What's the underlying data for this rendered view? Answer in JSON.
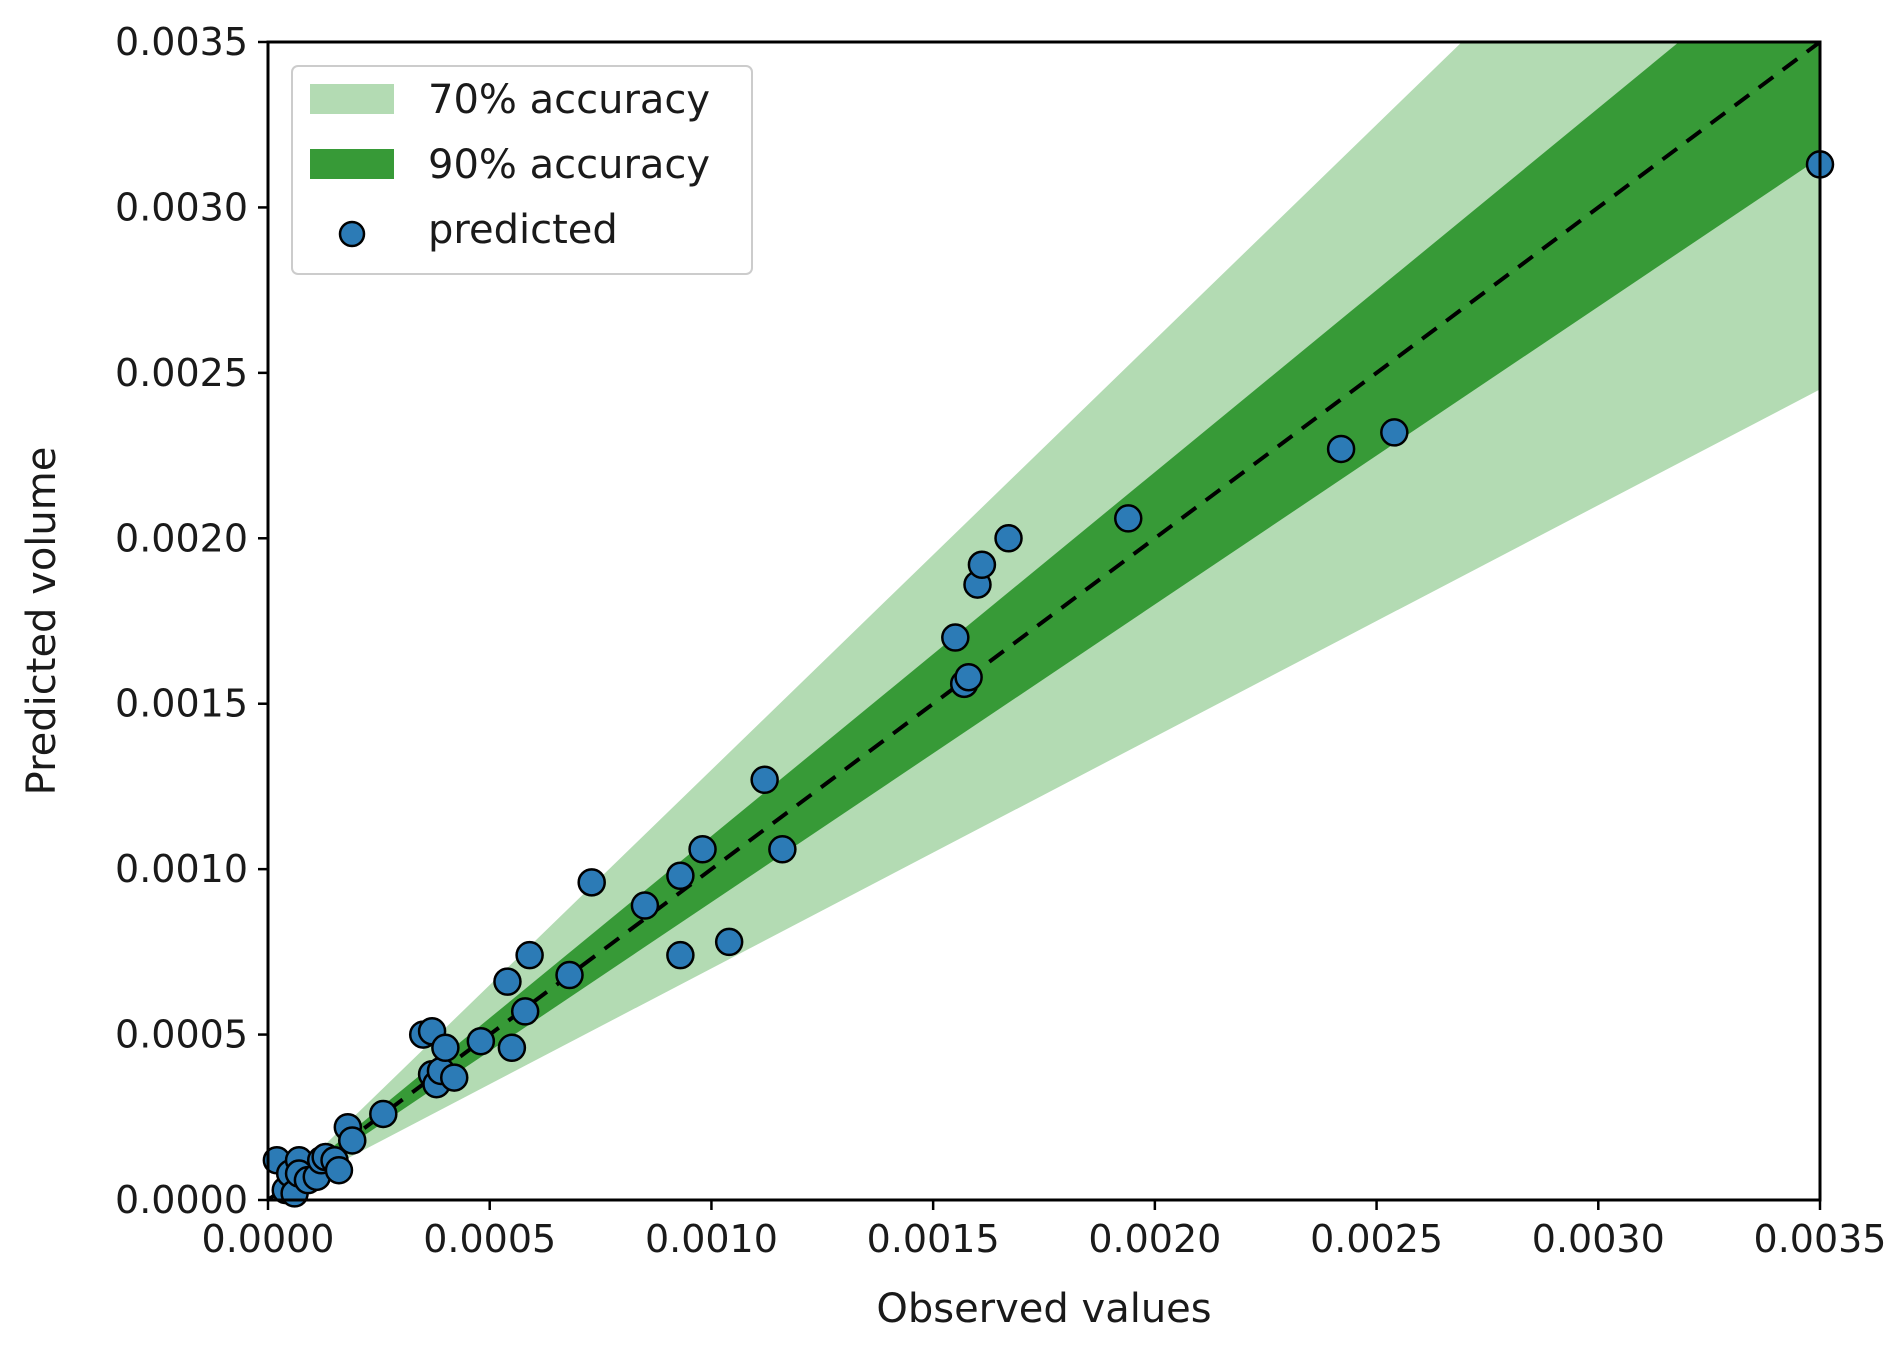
{
  "chart_data": {
    "type": "scatter",
    "title": "",
    "xlabel": "Observed values",
    "ylabel": "Predicted volume",
    "xlim": [
      0,
      0.0035
    ],
    "ylim": [
      0,
      0.0035
    ],
    "xticks": [
      "0.0000",
      "0.0005",
      "0.0010",
      "0.0015",
      "0.0020",
      "0.0025",
      "0.0030",
      "0.0035"
    ],
    "yticks": [
      "0.0000",
      "0.0005",
      "0.0010",
      "0.0015",
      "0.0020",
      "0.0025",
      "0.0030",
      "0.0035"
    ],
    "grid": false,
    "legend_placement": "top-left",
    "bands": [
      {
        "name": "70% accuracy",
        "lower_factor": 0.7,
        "upper_factor": 1.3,
        "color": "#b3dbb3"
      },
      {
        "name": "90% accuracy",
        "lower_factor": 0.9,
        "upper_factor": 1.1,
        "color": "#379a37"
      }
    ],
    "reference_line": {
      "style": "dashed",
      "color": "#000000",
      "slope": 1
    },
    "series": [
      {
        "name": "predicted",
        "color": "#2c7bb6",
        "edge_color": "#000000",
        "x": [
          2e-05,
          4e-05,
          5e-05,
          6e-05,
          7e-05,
          7e-05,
          9e-05,
          0.00011,
          0.00012,
          0.00013,
          0.00015,
          0.00016,
          0.00018,
          0.00019,
          0.00026,
          0.00035,
          0.00037,
          0.00037,
          0.00038,
          0.00039,
          0.0004,
          0.00042,
          0.00048,
          0.00054,
          0.00055,
          0.00058,
          0.00059,
          0.00068,
          0.00073,
          0.00085,
          0.00093,
          0.00093,
          0.00098,
          0.00104,
          0.00112,
          0.00116,
          0.00155,
          0.00157,
          0.00158,
          0.0016,
          0.00161,
          0.00167,
          0.00194,
          0.00242,
          0.00254,
          0.0035
        ],
        "y": [
          0.00012,
          3e-05,
          8e-05,
          2e-05,
          0.00012,
          8e-05,
          6e-05,
          7e-05,
          0.00012,
          0.00013,
          0.00012,
          9e-05,
          0.00022,
          0.00018,
          0.00026,
          0.0005,
          0.00038,
          0.00051,
          0.00035,
          0.00039,
          0.00046,
          0.00037,
          0.00048,
          0.00066,
          0.00046,
          0.00057,
          0.00074,
          0.00068,
          0.00096,
          0.00089,
          0.00098,
          0.00074,
          0.00106,
          0.00078,
          0.00127,
          0.00106,
          0.0017,
          0.00156,
          0.00158,
          0.00186,
          0.00192,
          0.002,
          0.00206,
          0.00227,
          0.00232,
          0.00313
        ]
      }
    ]
  }
}
